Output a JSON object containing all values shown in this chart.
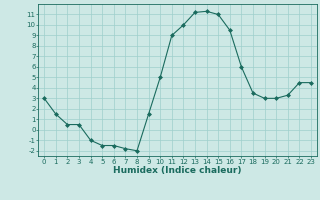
{
  "x": [
    0,
    1,
    2,
    3,
    4,
    5,
    6,
    7,
    8,
    9,
    10,
    11,
    12,
    13,
    14,
    15,
    16,
    17,
    18,
    19,
    20,
    21,
    22,
    23
  ],
  "y": [
    3,
    1.5,
    0.5,
    0.5,
    -1,
    -1.5,
    -1.5,
    -1.8,
    -2,
    1.5,
    5,
    9,
    10,
    11.2,
    11.3,
    11,
    9.5,
    6,
    3.5,
    3,
    3,
    3.3,
    4.5,
    4.5
  ],
  "line_color": "#1a6b5e",
  "marker_color": "#1a6b5e",
  "bg_color": "#cde8e5",
  "grid_color": "#9ecfcc",
  "xlabel": "Humidex (Indice chaleur)",
  "ylim": [
    -2.5,
    12
  ],
  "xlim": [
    -0.5,
    23.5
  ],
  "yticks": [
    -2,
    -1,
    0,
    1,
    2,
    3,
    4,
    5,
    6,
    7,
    8,
    9,
    10,
    11
  ],
  "xticks": [
    0,
    1,
    2,
    3,
    4,
    5,
    6,
    7,
    8,
    9,
    10,
    11,
    12,
    13,
    14,
    15,
    16,
    17,
    18,
    19,
    20,
    21,
    22,
    23
  ],
  "tick_fontsize": 5,
  "label_fontsize": 6.5
}
